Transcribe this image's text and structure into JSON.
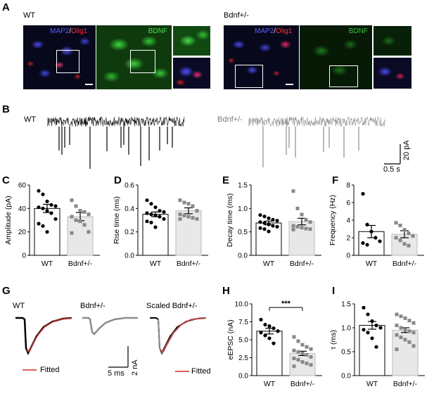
{
  "panel_letters": {
    "A": "A",
    "B": "B",
    "C": "C",
    "D": "D",
    "E": "E",
    "F": "F",
    "G": "G",
    "H": "H",
    "I": "I"
  },
  "groups": {
    "wt": "WT",
    "het": "Bdnf+/-"
  },
  "panelA": {
    "left_title": "WT",
    "right_title": "Bdnf+/-",
    "stain_map2": "MAP2",
    "stain_sep": "/",
    "stain_olig1": "Olig1",
    "stain_bdnf": "BDNF"
  },
  "panelB": {
    "scale_y": "20 pA",
    "scale_x": "0.5 s"
  },
  "panelG": {
    "title_wt": "WT",
    "title_het": "Bdnf+/-",
    "title_scaled": "Scaled Bdnf+/-",
    "fitted": "Fitted",
    "scale_y": "2 nA",
    "scale_x": "5 ms"
  },
  "colors": {
    "wt_trace": "#000000",
    "het_trace": "#8c8c8c",
    "fit": "#d42a2a",
    "het_bar": "#e8e8e8",
    "map2": "#3b3bd8",
    "olig1": "#e02020",
    "bdnf": "#2fbf2f"
  },
  "chart_data": [
    {
      "id": "C",
      "type": "bar",
      "ylabel": "Amplitude (pA)",
      "ylim": [
        0,
        60
      ],
      "yticks": [
        0,
        20,
        40,
        60
      ],
      "categories": [
        "WT",
        "Bdnf+/-"
      ],
      "values": [
        40,
        33
      ],
      "sem": [
        3.5,
        3.5
      ],
      "points": [
        [
          55,
          52,
          46,
          43,
          42,
          41,
          40,
          38,
          36,
          31,
          27,
          25,
          20
        ],
        [
          47,
          42,
          38,
          37,
          35,
          33,
          30,
          29,
          26,
          20,
          19
        ]
      ]
    },
    {
      "id": "D",
      "type": "bar",
      "ylabel": "Rise time (ms)",
      "ylim": [
        0,
        0.6
      ],
      "yticks": [
        "0.0",
        "0.2",
        "0.4",
        "0.6"
      ],
      "categories": [
        "WT",
        "Bdnf+/-"
      ],
      "values": [
        0.35,
        0.38
      ],
      "sem": [
        0.02,
        0.025
      ],
      "points": [
        [
          0.47,
          0.44,
          0.41,
          0.38,
          0.37,
          0.36,
          0.35,
          0.34,
          0.33,
          0.31,
          0.29,
          0.28,
          0.24
        ],
        [
          0.47,
          0.45,
          0.44,
          0.42,
          0.38,
          0.35,
          0.34,
          0.33,
          0.32,
          0.31,
          0.31
        ]
      ]
    },
    {
      "id": "E",
      "type": "bar",
      "ylabel": "Decay time (ms)",
      "ylim": [
        0,
        1.5
      ],
      "yticks": [
        "0.0",
        "0.5",
        "1.0",
        "1.5"
      ],
      "categories": [
        "WT",
        "Bdnf+/-"
      ],
      "values": [
        0.69,
        0.72
      ],
      "sem": [
        0.04,
        0.07
      ],
      "points": [
        [
          0.86,
          0.83,
          0.79,
          0.76,
          0.74,
          0.71,
          0.69,
          0.66,
          0.63,
          0.61,
          0.58,
          0.56,
          0.51
        ],
        [
          1.37,
          1.0,
          0.87,
          0.76,
          0.71,
          0.63,
          0.61,
          0.59,
          0.57,
          0.56,
          0.55
        ]
      ]
    },
    {
      "id": "F",
      "type": "bar",
      "ylabel": "Frequency (Hz)",
      "ylim": [
        0,
        8
      ],
      "yticks": [
        0,
        2,
        4,
        6,
        8
      ],
      "categories": [
        "WT",
        "Bdnf+/-"
      ],
      "values": [
        2.7,
        2.4
      ],
      "sem": [
        0.7,
        0.4
      ],
      "points": [
        [
          7.0,
          3.5,
          2.7,
          2.0,
          1.6,
          1.4,
          1.2
        ],
        [
          3.7,
          3.4,
          2.9,
          2.5,
          2.2,
          2.0,
          1.7,
          1.3,
          1.1
        ]
      ]
    },
    {
      "id": "H",
      "type": "bar",
      "ylabel": "eEPSC (nA)",
      "ylim": [
        0,
        10
      ],
      "yticks": [
        "0.0",
        "2.5",
        "5.0",
        "7.5",
        "10.0"
      ],
      "categories": [
        "WT",
        "Bdnf+/-"
      ],
      "values": [
        6.2,
        3.1
      ],
      "sem": [
        0.4,
        0.3
      ],
      "significance": "***",
      "points": [
        [
          7.8,
          7.1,
          6.9,
          6.6,
          6.2,
          6.0,
          5.6,
          5.2,
          4.5
        ],
        [
          5.4,
          4.8,
          4.3,
          4.0,
          3.7,
          3.5,
          3.3,
          3.1,
          2.9,
          2.6,
          2.4,
          2.2,
          1.9,
          1.7,
          1.5,
          1.3
        ]
      ]
    },
    {
      "id": "I",
      "type": "bar",
      "ylabel": "τ (ms)",
      "ylim": [
        0,
        1.5
      ],
      "yticks": [
        "0.0",
        "0.5",
        "1.0",
        "1.5"
      ],
      "categories": [
        "WT",
        "Bdnf+/-"
      ],
      "values": [
        1.05,
        0.95
      ],
      "sem": [
        0.08,
        0.05
      ],
      "points": [
        [
          1.42,
          1.28,
          1.14,
          1.05,
          1.0,
          0.96,
          0.9,
          0.78,
          0.6
        ],
        [
          1.28,
          1.24,
          1.2,
          1.15,
          1.1,
          1.05,
          1.0,
          0.96,
          0.93,
          0.9,
          0.85,
          0.8,
          0.75,
          0.7,
          0.62,
          0.55
        ]
      ]
    }
  ]
}
